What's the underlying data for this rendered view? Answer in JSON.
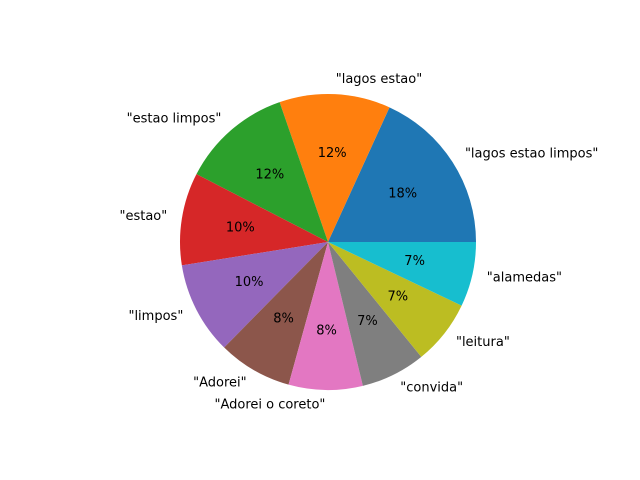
{
  "chart_data": {
    "type": "pie",
    "start_angle_deg": 0,
    "direction": "counterclockwise",
    "slices": [
      {
        "label": "\"lagos estao limpos\"",
        "value": 18,
        "pct_label": "18%",
        "color": "#1f77b4"
      },
      {
        "label": "\"lagos estao\"",
        "value": 12,
        "pct_label": "12%",
        "color": "#ff7f0e"
      },
      {
        "label": "\"estao limpos\"",
        "value": 12,
        "pct_label": "12%",
        "color": "#2ca02c"
      },
      {
        "label": "\"estao\"",
        "value": 10,
        "pct_label": "10%",
        "color": "#d62728"
      },
      {
        "label": "\"limpos\"",
        "value": 10,
        "pct_label": "10%",
        "color": "#9467bd"
      },
      {
        "label": "\"Adorei\"",
        "value": 8,
        "pct_label": "8%",
        "color": "#8c564b"
      },
      {
        "label": "\"Adorei o coreto\"",
        "value": 8,
        "pct_label": "8%",
        "color": "#e377c2"
      },
      {
        "label": "\"convida\"",
        "value": 7,
        "pct_label": "7%",
        "color": "#7f7f7f"
      },
      {
        "label": "\"leitura\"",
        "value": 7,
        "pct_label": "7%",
        "color": "#bcbd22"
      },
      {
        "label": "\"alamedas\"",
        "value": 7,
        "pct_label": "7%",
        "color": "#17becf"
      }
    ]
  }
}
